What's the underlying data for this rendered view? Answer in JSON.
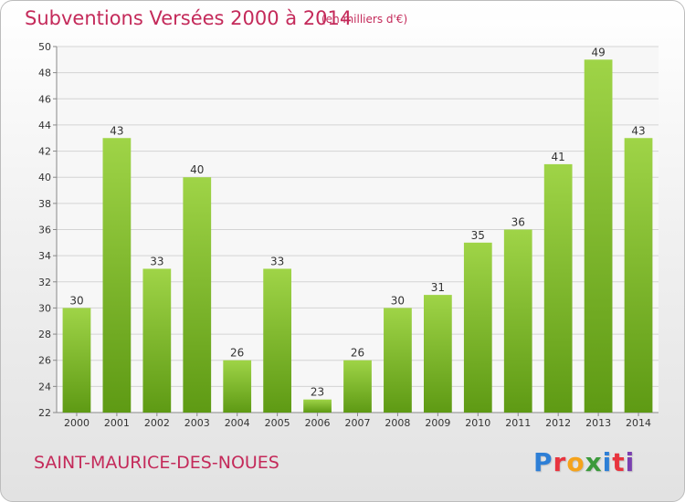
{
  "header": {
    "title": "Subventions Versées 2000 à 2014",
    "unit_note": "(en milliers d'€)"
  },
  "footer": {
    "place": "SAINT-MAURICE-DES-NOUES",
    "logo_letters": [
      "P",
      "r",
      "o",
      "x",
      "i",
      "t",
      "i"
    ],
    "logo_colors": [
      "#2e7fd6",
      "#e8343e",
      "#f5a31b",
      "#3b9a3b",
      "#2e7fd6",
      "#e8343e",
      "#7a3fb0"
    ]
  },
  "chart_data": {
    "type": "bar",
    "categories": [
      "2000",
      "2001",
      "2002",
      "2003",
      "2004",
      "2005",
      "2006",
      "2007",
      "2008",
      "2009",
      "2010",
      "2011",
      "2012",
      "2013",
      "2014"
    ],
    "values": [
      30,
      43,
      33,
      40,
      26,
      33,
      23,
      26,
      30,
      31,
      35,
      36,
      41,
      49,
      43
    ],
    "ylim": [
      22,
      50
    ],
    "yticks": [
      22,
      24,
      26,
      28,
      30,
      32,
      34,
      36,
      38,
      40,
      42,
      44,
      46,
      48,
      50
    ],
    "grid": true,
    "bar_color_top": "#9fd447",
    "bar_color_bottom": "#5e9a14"
  }
}
